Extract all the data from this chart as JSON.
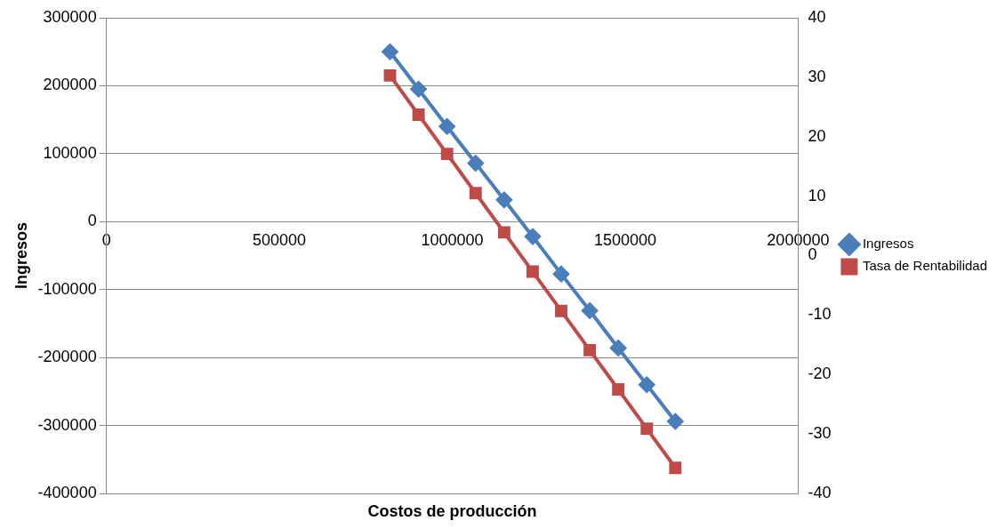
{
  "chart_data": {
    "type": "line",
    "xlabel": "Costos de producción",
    "ylabel": "Ingresos",
    "x": [
      820000,
      902500,
      985000,
      1067500,
      1150000,
      1232500,
      1315000,
      1397500,
      1480000,
      1562500,
      1645000
    ],
    "series": [
      {
        "name": "Ingresos",
        "color": "#4a7ebb",
        "marker": "diamond",
        "values": [
          250000,
          195000,
          140000,
          86000,
          32000,
          -22000,
          -77000,
          -131000,
          -186000,
          -240000,
          -294000
        ]
      },
      {
        "name": "Tasa de Rentabilidad",
        "color": "#be4b48",
        "marker": "square",
        "axis": "y2",
        "values": [
          30.3,
          23.7,
          17.1,
          10.5,
          3.9,
          -2.7,
          -9.3,
          -15.9,
          -22.5,
          -29.1,
          -35.7
        ]
      }
    ],
    "xlim": [
      0,
      2000000
    ],
    "xticks": [
      0,
      500000,
      1000000,
      1500000,
      2000000
    ],
    "ylim": [
      -400000,
      300000
    ],
    "yticks": [
      -400000,
      -300000,
      -200000,
      -100000,
      0,
      100000,
      200000,
      300000
    ],
    "y2lim": [
      -40,
      40
    ],
    "y2ticks": [
      -40,
      -30,
      -20,
      -10,
      0,
      10,
      20,
      30,
      40
    ],
    "grid": "y",
    "legend": "right",
    "line_style": "solid"
  }
}
